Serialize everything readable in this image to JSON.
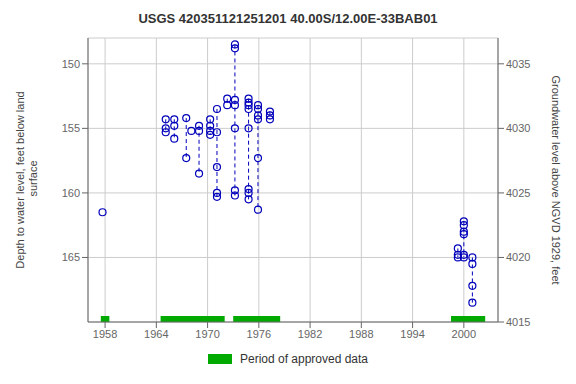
{
  "chart_data": {
    "type": "scatter",
    "title": "USGS 420351121251201 40.00S/12.00E-33BAB01",
    "y_label": "Depth to water level, feet below land\n surface",
    "y2_label": "Groundwater level above NGVD 1929, feet",
    "xlim": [
      1956,
      2004
    ],
    "xticks": [
      1958,
      1964,
      1970,
      1976,
      1982,
      1988,
      1994,
      2000
    ],
    "ylim": [
      148,
      170
    ],
    "yticks": [
      150,
      155,
      160,
      165
    ],
    "y_inverted": true,
    "y2lim": [
      4015,
      4037
    ],
    "y2ticks": [
      4015,
      4020,
      4025,
      4030,
      4035
    ],
    "grid": true,
    "legend": "bottom",
    "series": [
      {
        "type": "scatter",
        "color": "#0000bb",
        "marker": "open_circle",
        "line_style": "dashed",
        "clusters": [
          {
            "x": 1957.7,
            "values": [
              161.5
            ]
          },
          {
            "x": 1965.1,
            "values": [
              154.3,
              155.0,
              155.3
            ]
          },
          {
            "x": 1966.1,
            "values": [
              154.3,
              154.8,
              155.8
            ]
          },
          {
            "x": 1967.5,
            "values": [
              154.2,
              157.3
            ]
          },
          {
            "x": 1968.1,
            "values": [
              155.2
            ]
          },
          {
            "x": 1969.0,
            "values": [
              154.8,
              155.2,
              158.5
            ]
          },
          {
            "x": 1970.3,
            "values": [
              154.3,
              154.8,
              155.2,
              155.5
            ]
          },
          {
            "x": 1971.1,
            "values": [
              153.5,
              155.3,
              158.0,
              160.0,
              160.3
            ]
          },
          {
            "x": 1972.3,
            "values": [
              152.7,
              153.2
            ]
          },
          {
            "x": 1973.2,
            "values": [
              148.5,
              148.8,
              152.8,
              153.2,
              155.0,
              159.8,
              160.2
            ]
          },
          {
            "x": 1974.8,
            "values": [
              152.7,
              153.0,
              153.2,
              153.5,
              155.0,
              159.7,
              160.0,
              160.5
            ]
          },
          {
            "x": 1975.9,
            "values": [
              153.2,
              153.5,
              154.0,
              154.3,
              157.3,
              161.3
            ]
          },
          {
            "x": 1977.3,
            "values": [
              153.7,
              154.0,
              154.3
            ]
          },
          {
            "x": 1999.3,
            "values": [
              164.3,
              164.8,
              165.0
            ]
          },
          {
            "x": 2000.0,
            "values": [
              162.2,
              162.5,
              163.0,
              163.2,
              164.8,
              165.0
            ]
          },
          {
            "x": 2001.0,
            "values": [
              165.0,
              165.5,
              167.2,
              168.5
            ]
          }
        ]
      },
      {
        "type": "span",
        "name": "Period of approved data",
        "color": "#00aa00",
        "periods": [
          [
            1957.5,
            1958.5
          ],
          [
            1964.5,
            1972.0
          ],
          [
            1973.0,
            1978.5
          ],
          [
            1998.5,
            2002.5
          ]
        ]
      }
    ]
  }
}
